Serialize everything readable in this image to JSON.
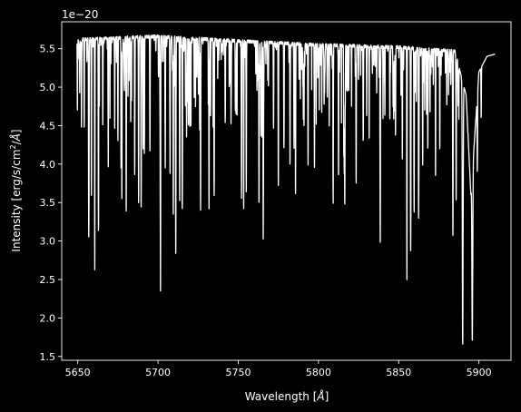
{
  "chart_data": {
    "type": "line",
    "xlabel_prefix": "Wavelength [",
    "xlabel_unit": "Å",
    "xlabel_suffix": "]",
    "ylabel_prefix": "Intensity [erg/s/cm",
    "ylabel_sup": "2",
    "ylabel_suffix": "/",
    "ylabel_unit": "Å",
    "ylabel_close": "]",
    "offset_text": "1e−20",
    "xlim": [
      5640,
      5920
    ],
    "ylim": [
      1.45,
      5.85
    ],
    "x_ticks": [
      5650,
      5700,
      5750,
      5800,
      5850,
      5900
    ],
    "x_tick_labels": [
      "5650",
      "5700",
      "5750",
      "5800",
      "5850",
      "5900"
    ],
    "y_ticks": [
      1.5,
      2.0,
      2.5,
      3.0,
      3.5,
      4.0,
      4.5,
      5.0,
      5.5
    ],
    "y_tick_labels": [
      "1.5",
      "2.0",
      "2.5",
      "3.0",
      "3.5",
      "4.0",
      "4.5",
      "5.0",
      "5.5"
    ],
    "line_color": "#ffffff",
    "background": "#000000",
    "continuum": {
      "x": [
        5649.5,
        5700,
        5750,
        5800,
        5850,
        5885,
        5892,
        5895,
        5900,
        5905,
        5910
      ],
      "y": [
        5.62,
        5.66,
        5.6,
        5.55,
        5.52,
        5.47,
        4.9,
        3.6,
        5.2,
        5.4,
        5.43
      ]
    },
    "absorption_lines": [
      {
        "x": 5649.8,
        "y": 4.72
      },
      {
        "x": 5652.3,
        "y": 4.48
      },
      {
        "x": 5654.0,
        "y": 4.5
      },
      {
        "x": 5656.8,
        "y": 3.53
      },
      {
        "x": 5658.5,
        "y": 3.6
      },
      {
        "x": 5660.6,
        "y": 2.61
      },
      {
        "x": 5662.9,
        "y": 3.11
      },
      {
        "x": 5665.6,
        "y": 4.5
      },
      {
        "x": 5669.0,
        "y": 3.96
      },
      {
        "x": 5673.0,
        "y": 4.45
      },
      {
        "x": 5675.0,
        "y": 4.3
      },
      {
        "x": 5677.5,
        "y": 3.95
      },
      {
        "x": 5680.2,
        "y": 3.35
      },
      {
        "x": 5683.0,
        "y": 4.55
      },
      {
        "x": 5685.5,
        "y": 3.85
      },
      {
        "x": 5687.9,
        "y": 3.48
      },
      {
        "x": 5689.5,
        "y": 3.4
      },
      {
        "x": 5691.5,
        "y": 4.2
      },
      {
        "x": 5695.0,
        "y": 4.45
      },
      {
        "x": 5701.5,
        "y": 3.11
      },
      {
        "x": 5704.5,
        "y": 3.95
      },
      {
        "x": 5707.5,
        "y": 4.1
      },
      {
        "x": 5709.5,
        "y": 3.4
      },
      {
        "x": 5711.1,
        "y": 2.85
      },
      {
        "x": 5713.5,
        "y": 3.5
      },
      {
        "x": 5715.1,
        "y": 3.52
      },
      {
        "x": 5717.8,
        "y": 4.35
      },
      {
        "x": 5720.5,
        "y": 4.5
      },
      {
        "x": 5726.5,
        "y": 4.2
      },
      {
        "x": 5731.8,
        "y": 4.15
      },
      {
        "x": 5735.0,
        "y": 3.75
      },
      {
        "x": 5741.9,
        "y": 4.55
      },
      {
        "x": 5745.5,
        "y": 4.6
      },
      {
        "x": 5752.0,
        "y": 3.8
      },
      {
        "x": 5753.4,
        "y": 3.38
      },
      {
        "x": 5755.0,
        "y": 3.6
      },
      {
        "x": 5762.9,
        "y": 3.75
      },
      {
        "x": 5765.6,
        "y": 3.07
      },
      {
        "x": 5772.0,
        "y": 4.45
      },
      {
        "x": 5775.0,
        "y": 3.72
      },
      {
        "x": 5778.5,
        "y": 4.2
      },
      {
        "x": 5782.3,
        "y": 4.0
      },
      {
        "x": 5785.7,
        "y": 3.6
      },
      {
        "x": 5791.0,
        "y": 4.5
      },
      {
        "x": 5793.5,
        "y": 4.0
      },
      {
        "x": 5797.5,
        "y": 3.95
      },
      {
        "x": 5803.5,
        "y": 4.8
      },
      {
        "x": 5806.7,
        "y": 4.5
      },
      {
        "x": 5809.2,
        "y": 4.35
      },
      {
        "x": 5812.5,
        "y": 4.6
      },
      {
        "x": 5816.4,
        "y": 3.62
      },
      {
        "x": 5823.5,
        "y": 4.0
      },
      {
        "x": 5827.9,
        "y": 4.3
      },
      {
        "x": 5831.6,
        "y": 4.35
      },
      {
        "x": 5838.4,
        "y": 4.15
      },
      {
        "x": 5844.5,
        "y": 4.6
      },
      {
        "x": 5848.0,
        "y": 4.35
      },
      {
        "x": 5852.3,
        "y": 4.05
      },
      {
        "x": 5855.1,
        "y": 2.82
      },
      {
        "x": 5857.5,
        "y": 2.83
      },
      {
        "x": 5859.6,
        "y": 3.35
      },
      {
        "x": 5862.4,
        "y": 3.4
      },
      {
        "x": 5865.0,
        "y": 4.3
      },
      {
        "x": 5869.5,
        "y": 4.65
      },
      {
        "x": 5875.6,
        "y": 4.2
      },
      {
        "x": 5880.0,
        "y": 4.75
      },
      {
        "x": 5883.8,
        "y": 3.63
      },
      {
        "x": 5889.9,
        "y": 1.65
      },
      {
        "x": 5895.9,
        "y": 1.7
      },
      {
        "x": 5899.0,
        "y": 3.9
      },
      {
        "x": 5901.4,
        "y": 4.6
      }
    ]
  }
}
